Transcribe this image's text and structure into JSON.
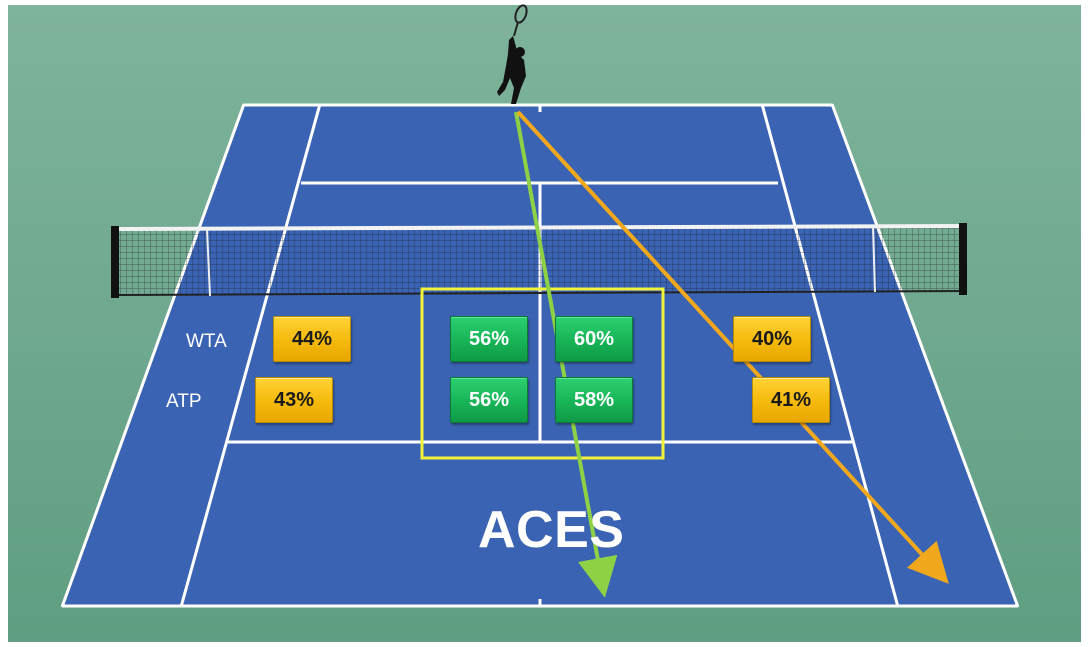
{
  "labels": {
    "wta": "WTA",
    "atp": "ATP",
    "title": "ACES"
  },
  "stats": {
    "wta_wide_left": "44%",
    "wta_body_left": "56%",
    "wta_body_right": "60%",
    "wta_wide_right": "40%",
    "atp_wide_left": "43%",
    "atp_body_left": "56%",
    "atp_body_right": "58%",
    "atp_wide_right": "41%"
  },
  "colors": {
    "surround": "#6fa98f",
    "court": "#3a64b3",
    "lines": "#ffffff",
    "highlight_box": "#f2f23a",
    "green_arrow": "#8fd145",
    "orange_arrow": "#f2a81d",
    "gold_badge": "#f5b90c",
    "green_badge": "#18b457"
  }
}
